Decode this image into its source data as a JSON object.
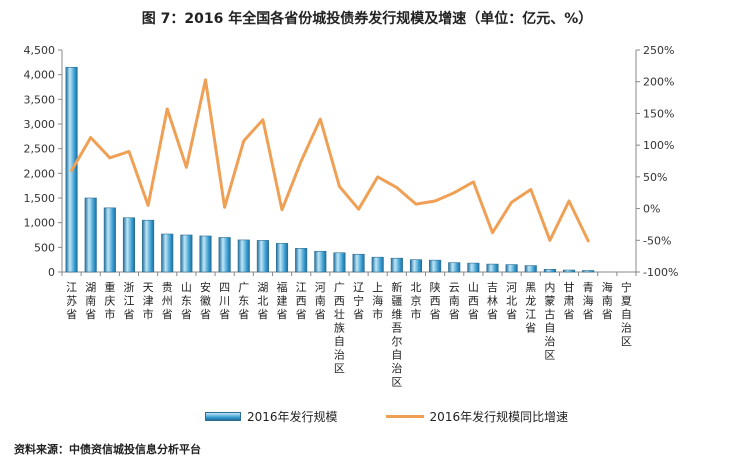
{
  "chart_data": {
    "type": "bar+line",
    "title": "图 7：2016 年全国各省份城投债券发行规模及增速（单位：亿元、%）",
    "categories": [
      "江苏省",
      "湖南省",
      "重庆市",
      "浙江省",
      "天津市",
      "贵州省",
      "山东省",
      "安徽省",
      "四川省",
      "广东省",
      "湖北省",
      "福建省",
      "江西省",
      "河南省",
      "广西壮族自治区",
      "辽宁省",
      "上海市",
      "新疆维吾尔自治区",
      "北京市",
      "陕西省",
      "云南省",
      "山西省",
      "吉林省",
      "河北省",
      "黑龙江省",
      "内蒙古自治区",
      "甘肃省",
      "青海省",
      "海南省",
      "宁夏自治区"
    ],
    "series": [
      {
        "name": "2016年发行规模",
        "axis": "left",
        "type": "bar",
        "values": [
          4150,
          1500,
          1300,
          1100,
          1050,
          770,
          750,
          730,
          700,
          650,
          640,
          580,
          480,
          420,
          390,
          360,
          300,
          280,
          250,
          240,
          190,
          180,
          160,
          150,
          130,
          55,
          40,
          30,
          0,
          0
        ]
      },
      {
        "name": "2016年发行规模同比增速",
        "axis": "right",
        "type": "line",
        "values": [
          60,
          112,
          80,
          90,
          5,
          157,
          65,
          203,
          2,
          107,
          140,
          -2,
          75,
          141,
          35,
          -1,
          50,
          33,
          7,
          12,
          25,
          42,
          -38,
          10,
          30,
          -50,
          12,
          -51,
          null,
          null
        ]
      }
    ],
    "y_left": {
      "min": 0,
      "max": 4500,
      "step": 500
    },
    "y_right": {
      "min": -100,
      "max": 250,
      "step": 50
    },
    "y_left_ticks": [
      "0",
      "500",
      "1,000",
      "1,500",
      "2,000",
      "2,500",
      "3,000",
      "3,500",
      "4,000",
      "4,500"
    ],
    "y_right_ticks": [
      "-100%",
      "-50%",
      "0%",
      "50%",
      "100%",
      "150%",
      "200%",
      "250%"
    ],
    "legend_position": "bottom",
    "colors": {
      "bar": "#3b9ed2",
      "bar_dark": "#1f6e9c",
      "line": "#f0a055",
      "axis": "#888888"
    }
  },
  "source": "资料来源：中债资信城投信息分析平台"
}
